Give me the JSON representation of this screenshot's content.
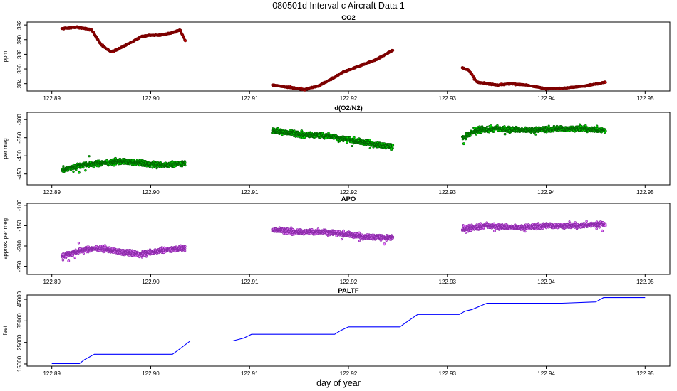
{
  "page": {
    "title": "080501d   Interval c Aircraft Data 1",
    "xlabel": "day of year"
  },
  "chart_data": [
    {
      "id": "co2",
      "type": "scatter",
      "title": "CO2",
      "ylabel": "ppm",
      "ylim": [
        383,
        392.4
      ],
      "yticks": [
        384,
        386,
        388,
        390,
        392
      ],
      "xlim": [
        122.8875,
        122.9525
      ],
      "xticks": [
        122.89,
        122.9,
        122.91,
        122.92,
        122.93,
        122.94,
        122.95
      ],
      "color": "#e80000",
      "edge": "#7a0000",
      "series": [
        {
          "x": [
            122.891,
            122.8925,
            122.894,
            122.895,
            122.896,
            122.897,
            122.898,
            122.899,
            122.9,
            122.901,
            122.902,
            122.903,
            122.9035
          ],
          "y": [
            391.5,
            391.7,
            391.4,
            389.3,
            388.3,
            388.9,
            389.6,
            390.4,
            390.6,
            390.6,
            390.9,
            391.3,
            389.8
          ]
        },
        {
          "x": [
            122.9123,
            122.914,
            122.9155,
            122.917,
            122.9185,
            122.9195,
            122.9205,
            122.9215,
            122.923,
            122.9245
          ],
          "y": [
            383.8,
            383.5,
            383.2,
            383.7,
            384.8,
            385.6,
            386.1,
            386.6,
            387.4,
            388.6
          ]
        },
        {
          "x": [
            122.9315,
            122.9322,
            122.933,
            122.935,
            122.9365,
            122.938,
            122.94,
            122.942,
            122.944,
            122.946
          ],
          "y": [
            386.2,
            385.8,
            384.2,
            383.8,
            384.0,
            383.8,
            383.3,
            383.4,
            383.7,
            384.2
          ]
        }
      ]
    },
    {
      "id": "o2n2",
      "type": "scatter",
      "title": "d(O2/N2)",
      "ylabel": "per meg",
      "ylim": [
        -480,
        -280
      ],
      "yticks": [
        -450,
        -400,
        -350,
        -300
      ],
      "xlim": [
        122.8875,
        122.9525
      ],
      "xticks": [
        122.89,
        122.9,
        122.91,
        122.92,
        122.93,
        122.94,
        122.95
      ],
      "color": "#00e000",
      "edge": "#006400",
      "series": [
        {
          "x": [
            122.891,
            122.893,
            122.895,
            122.897,
            122.899,
            122.901,
            122.9035
          ],
          "y": [
            -440,
            -425,
            -420,
            -415,
            -420,
            -425,
            -420
          ]
        },
        {
          "x": [
            122.9123,
            122.915,
            122.918,
            122.921,
            122.9245
          ],
          "y": [
            -330,
            -340,
            -345,
            -360,
            -375
          ]
        },
        {
          "x": [
            122.9315,
            122.933,
            122.935,
            122.938,
            122.941,
            122.944,
            122.946
          ],
          "y": [
            -350,
            -330,
            -325,
            -330,
            -325,
            -325,
            -330
          ]
        }
      ]
    },
    {
      "id": "apo",
      "type": "scatter",
      "title": "APO",
      "ylabel": "approx. per meg",
      "ylim": [
        -270,
        -95
      ],
      "yticks": [
        -250,
        -200,
        -150,
        -100
      ],
      "xlim": [
        122.8875,
        122.9525
      ],
      "xticks": [
        122.89,
        122.9,
        122.91,
        122.92,
        122.93,
        122.94,
        122.95
      ],
      "color": "#ea80ff",
      "edge": "#8a2aa8",
      "series": [
        {
          "x": [
            122.891,
            122.893,
            122.895,
            122.897,
            122.899,
            122.901,
            122.9035
          ],
          "y": [
            -225,
            -210,
            -205,
            -215,
            -220,
            -210,
            -205
          ]
        },
        {
          "x": [
            122.9123,
            122.915,
            122.918,
            122.921,
            122.9245
          ],
          "y": [
            -160,
            -165,
            -165,
            -175,
            -180
          ]
        },
        {
          "x": [
            122.9315,
            122.934,
            122.937,
            122.94,
            122.943,
            122.946
          ],
          "y": [
            -160,
            -150,
            -155,
            -150,
            -150,
            -145
          ]
        }
      ]
    },
    {
      "id": "paltf",
      "type": "line",
      "title": "PALTF",
      "ylabel": "feet",
      "ylim": [
        14000,
        47000
      ],
      "yticks": [
        15000,
        25000,
        35000,
        45000
      ],
      "xlim": [
        122.8875,
        122.9525
      ],
      "xticks": [
        122.89,
        122.9,
        122.91,
        122.92,
        122.93,
        122.94,
        122.95
      ],
      "color": "#0000ff",
      "x": [
        122.89,
        122.8928,
        122.8933,
        122.8943,
        122.9022,
        122.9028,
        122.904,
        122.9083,
        122.9094,
        122.9102,
        122.9186,
        122.9192,
        122.92,
        122.9252,
        122.9258,
        122.927,
        122.9312,
        122.9318,
        122.9325,
        122.934,
        122.9416,
        122.945,
        122.9458,
        122.95
      ],
      "y": [
        15200,
        15200,
        17000,
        19500,
        19500,
        21500,
        25700,
        25700,
        27000,
        28800,
        28800,
        30500,
        32200,
        32200,
        34200,
        38000,
        38000,
        39500,
        40300,
        43200,
        43200,
        43800,
        45800,
        45800
      ]
    }
  ]
}
